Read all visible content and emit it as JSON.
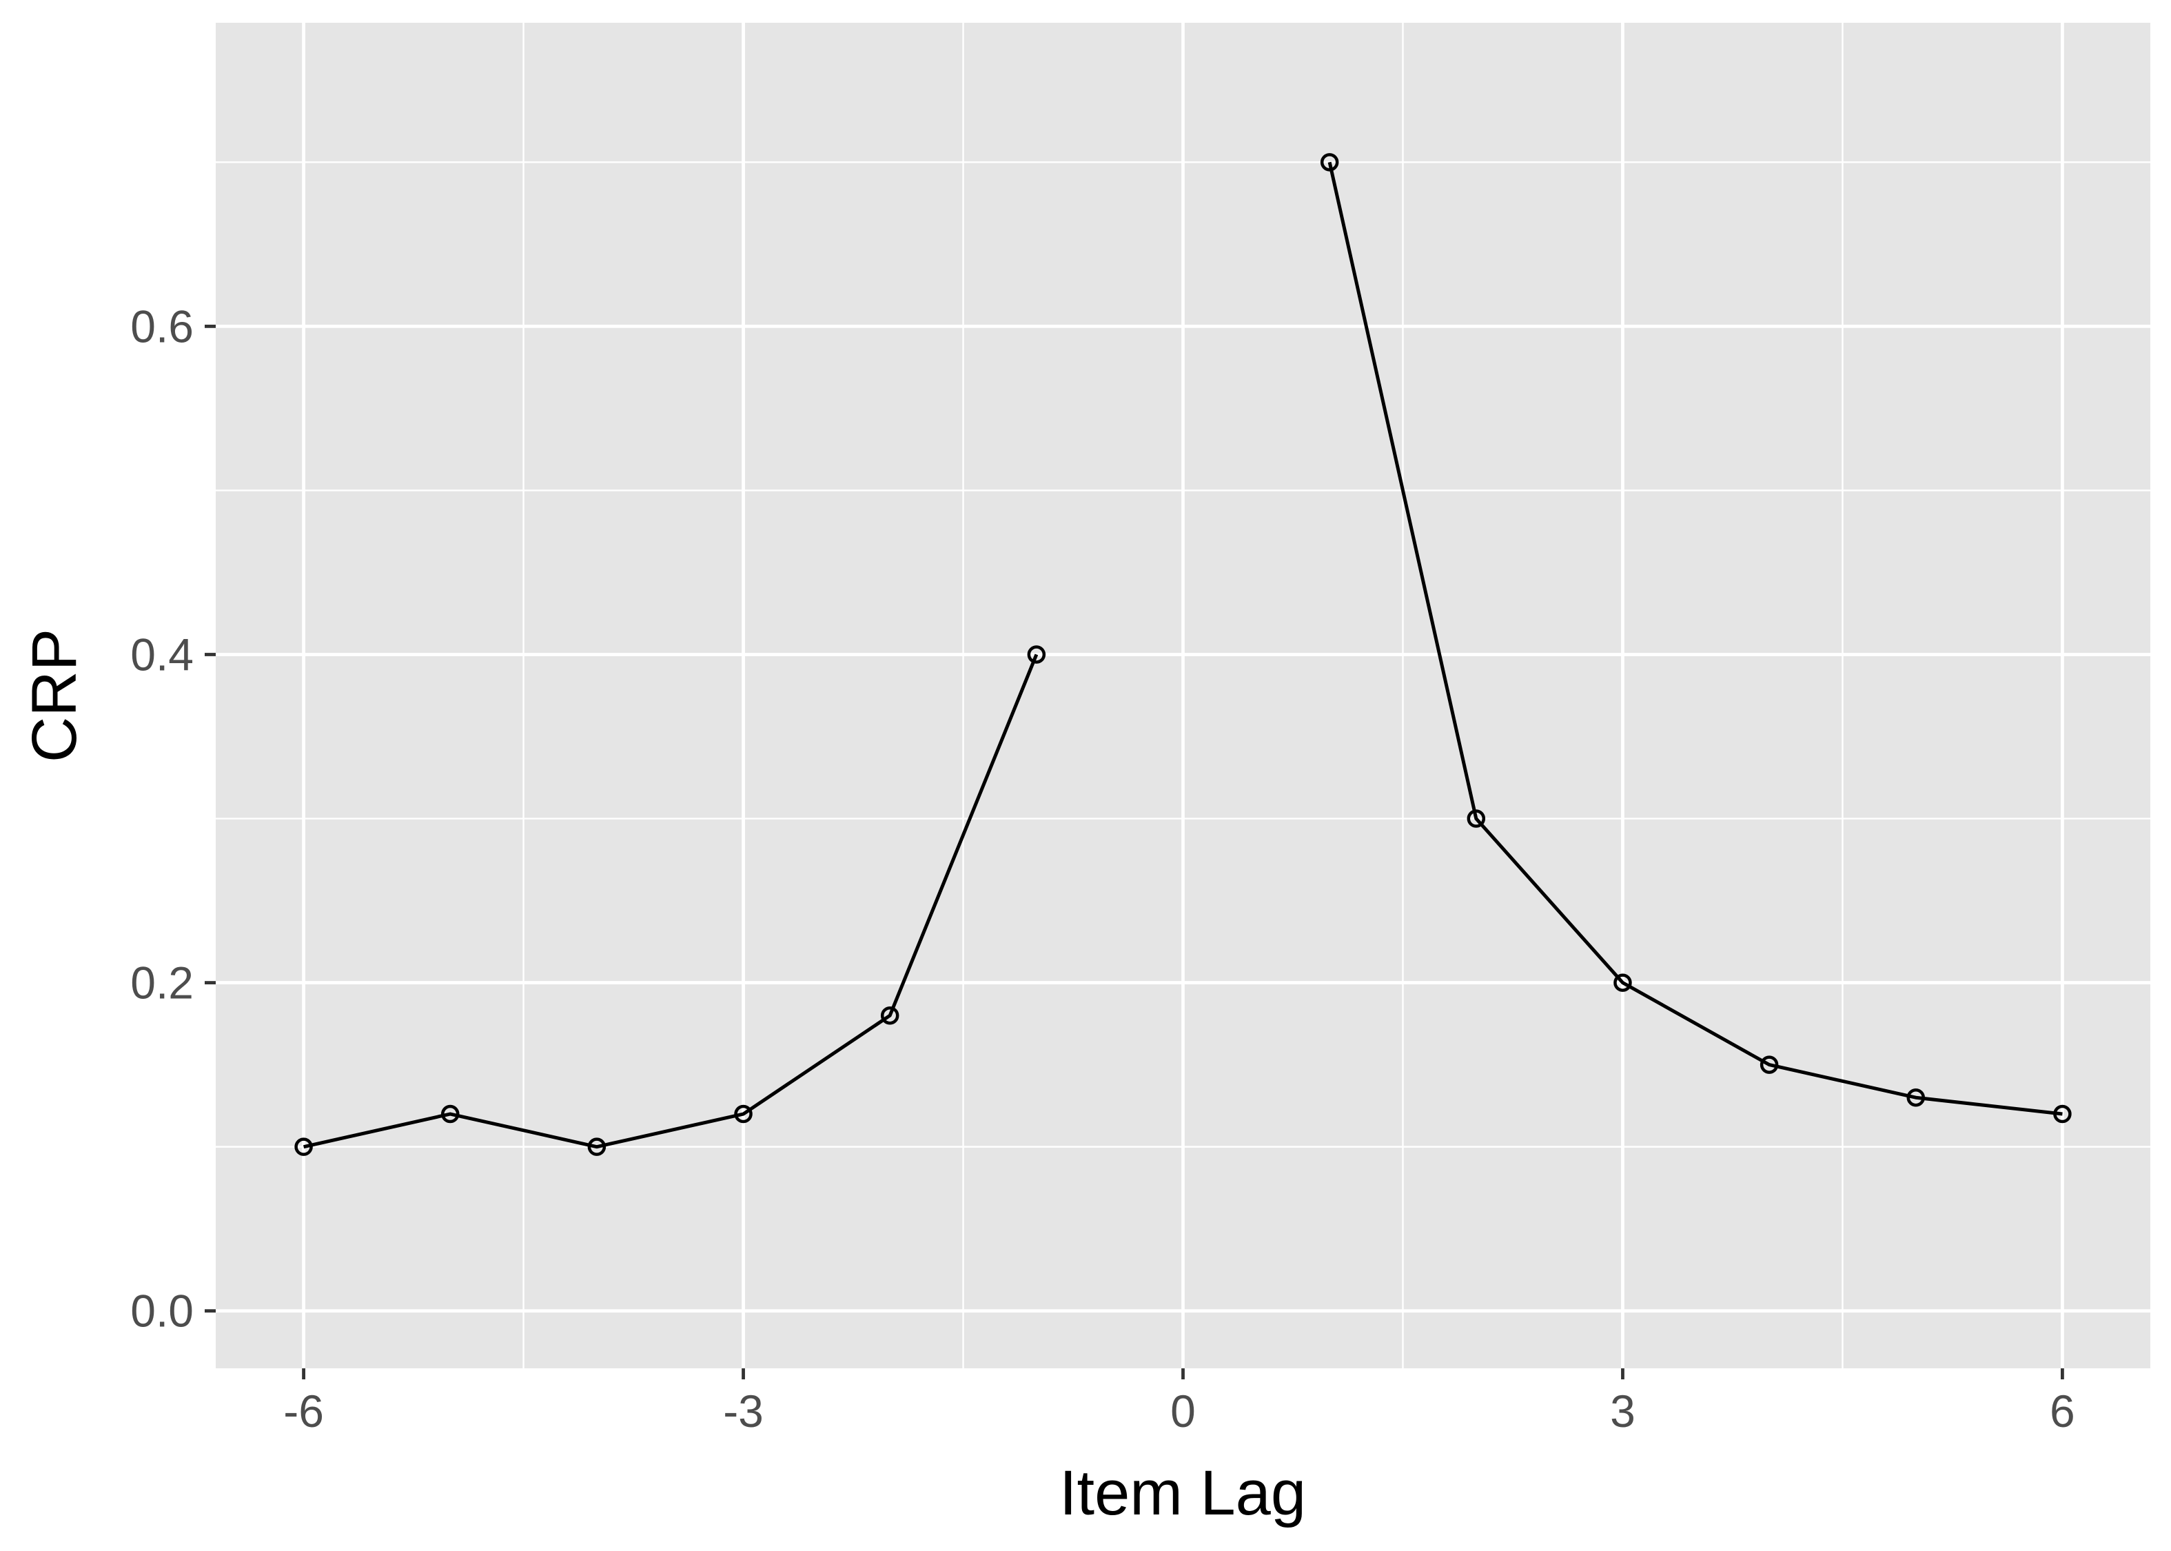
{
  "chart_data": {
    "type": "line",
    "xlabel": "Item Lag",
    "ylabel": "CRP",
    "xlim": [
      -6.6,
      6.6
    ],
    "ylim": [
      -0.035,
      0.785
    ],
    "x_ticks": [
      -6,
      -3,
      0,
      3,
      6
    ],
    "x_tick_labels": [
      "-6",
      "-3",
      "0",
      "3",
      "6"
    ],
    "y_ticks": [
      0.0,
      0.2,
      0.4,
      0.6
    ],
    "y_tick_labels": [
      "0.0",
      "0.2",
      "0.4",
      "0.6"
    ],
    "grid": true,
    "series": [
      {
        "segments": [
          {
            "x": [
              -6,
              -5,
              -4,
              -3,
              -2,
              -1
            ],
            "y": [
              0.1,
              0.12,
              0.1,
              0.12,
              0.18,
              0.4
            ]
          },
          {
            "x": [
              1,
              2,
              3,
              4,
              5,
              6
            ],
            "y": [
              0.7,
              0.3,
              0.2,
              0.15,
              0.13,
              0.12
            ]
          }
        ]
      }
    ],
    "colors": {
      "panel_background": "#e5e5e5",
      "grid": "#ffffff",
      "line": "#000000"
    }
  }
}
